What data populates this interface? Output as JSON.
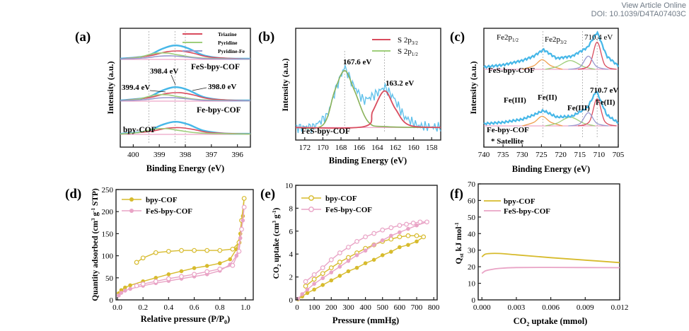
{
  "header": {
    "view_online": "View Article Online",
    "doi": "DOI: 10.1039/D4TA07403C"
  },
  "colors": {
    "blue": "#46b7e8",
    "red": "#d94c5e",
    "green": "#9fce7b",
    "olive": "#8ab25a",
    "pinkline": "#e98fb9",
    "orange": "#f0a050",
    "purple": "#9a9ad0",
    "yellow": "#d7bb2d",
    "pink": "#e9a4c6"
  },
  "chart_data": [
    {
      "id": "a",
      "type": "line",
      "panel_label": "(a)",
      "xlabel": "Binding Energy (eV)",
      "ylabel": "Intensity (a.u.)",
      "xlim": [
        400.5,
        395.5
      ],
      "x_reversed": true,
      "xticks": [
        400,
        399,
        398,
        397,
        396
      ],
      "legend": [
        "Triazine",
        "Pyridine",
        "Pyridine-Fe"
      ],
      "sample_labels": [
        "FeS-bpy-COF",
        "Fe-bpy-COF",
        "bpy-COF"
      ],
      "annotations": [
        "399.4 eV",
        "398.4 eV",
        "398.0 eV"
      ],
      "dashed_x": [
        399.4,
        398.4,
        398.0
      ],
      "series": [
        {
          "values": [
            [
              400.5,
              0.02
            ],
            [
              399.5,
              0.1
            ],
            [
              398.9,
              0.3
            ],
            [
              398.4,
              0.4
            ],
            [
              397.9,
              0.32
            ],
            [
              397.3,
              0.12
            ],
            [
              396.5,
              0.03
            ],
            [
              395.5,
              0.02
            ]
          ]
        },
        {
          "values": [
            [
              400.5,
              0.01
            ],
            [
              399.4,
              0.1
            ],
            [
              398.7,
              0.22
            ],
            [
              398.2,
              0.24
            ],
            [
              397.7,
              0.18
            ],
            [
              397.0,
              0.06
            ],
            [
              395.5,
              0.01
            ]
          ]
        },
        {
          "values": [
            [
              400.5,
              0.01
            ],
            [
              399.8,
              0.06
            ],
            [
              399.2,
              0.17
            ],
            [
              398.7,
              0.18
            ],
            [
              398.2,
              0.12
            ],
            [
              397.4,
              0.04
            ],
            [
              395.5,
              0.01
            ]
          ]
        },
        {
          "values": [
            [
              400.5,
              0.01
            ],
            [
              399.6,
              0.04
            ],
            [
              399.0,
              0.09
            ],
            [
              398.5,
              0.1
            ],
            [
              398.0,
              0.07
            ],
            [
              397.2,
              0.02
            ],
            [
              395.5,
              0.01
            ]
          ]
        }
      ]
    },
    {
      "id": "b",
      "type": "line",
      "panel_label": "(b)",
      "xlabel": "Binding Energy (eV)",
      "ylabel": "Intensity (a.u.)",
      "xlim": [
        173,
        157
      ],
      "x_reversed": true,
      "xticks": [
        172,
        170,
        168,
        166,
        164,
        162,
        160,
        158
      ],
      "legend": [
        "S 2p3/2",
        "S 2p1/2"
      ],
      "sample_labels": [
        "FeS-bpy-COF"
      ],
      "annotations": [
        "167.6 eV",
        "163.2 eV"
      ],
      "dashed_x": [
        167.6,
        163.2
      ],
      "series": [
        {
          "values": [
            [
              173,
              0.05
            ],
            [
              171,
              0.06
            ],
            [
              169.5,
              0.2
            ],
            [
              168.5,
              0.55
            ],
            [
              167.6,
              0.8
            ],
            [
              166.8,
              0.6
            ],
            [
              165.5,
              0.38
            ],
            [
              164.3,
              0.45
            ],
            [
              163.2,
              0.55
            ],
            [
              162.2,
              0.42
            ],
            [
              161,
              0.18
            ],
            [
              159.5,
              0.07
            ],
            [
              157,
              0.05
            ]
          ]
        },
        {
          "values": [
            [
              173,
              0.05
            ],
            [
              165.5,
              0.06
            ],
            [
              164.5,
              0.25
            ],
            [
              163.2,
              0.5
            ],
            [
              162,
              0.28
            ],
            [
              160.5,
              0.08
            ],
            [
              157,
              0.05
            ]
          ]
        },
        {
          "values": [
            [
              173,
              0.05
            ],
            [
              170,
              0.08
            ],
            [
              168.7,
              0.5
            ],
            [
              167.6,
              0.75
            ],
            [
              166.5,
              0.5
            ],
            [
              165,
              0.12
            ],
            [
              163,
              0.06
            ],
            [
              157,
              0.05
            ]
          ]
        }
      ]
    },
    {
      "id": "c",
      "type": "line",
      "panel_label": "(c)",
      "xlabel": "Binding Energy (eV)",
      "ylabel": "Intensity (a.u.)",
      "xlim": [
        740,
        705
      ],
      "x_reversed": true,
      "xticks": [
        740,
        735,
        730,
        725,
        720,
        715,
        710,
        705
      ],
      "sample_labels": [
        "FeS-bpy-COF",
        "Fe-bpy-COF",
        "* Satellite"
      ],
      "annotations": [
        "Fe2p1/2",
        "Fe2p3/2",
        "710.4 eV",
        "710.7 eV",
        "Fe(III)",
        "Fe(II)",
        "Fe(III)",
        "Fe(II)"
      ],
      "dashed_x": [
        724.6,
        714.3,
        710.5
      ],
      "series": [
        {
          "values": [
            [
              740,
              0.05
            ],
            [
              735,
              0.1
            ],
            [
              730,
              0.2
            ],
            [
              727,
              0.3
            ],
            [
              724.5,
              0.45
            ],
            [
              721,
              0.25
            ],
            [
              717,
              0.3
            ],
            [
              713,
              0.5
            ],
            [
              710.5,
              0.85
            ],
            [
              708,
              0.3
            ],
            [
              705,
              0.08
            ]
          ]
        },
        {
          "values": [
            [
              740,
              0.05
            ],
            [
              735,
              0.08
            ],
            [
              730,
              0.15
            ],
            [
              727,
              0.25
            ],
            [
              724.5,
              0.35
            ],
            [
              721,
              0.2
            ],
            [
              717,
              0.22
            ],
            [
              713,
              0.42
            ],
            [
              710.7,
              0.8
            ],
            [
              708,
              0.25
            ],
            [
              705,
              0.07
            ]
          ]
        }
      ]
    },
    {
      "id": "d",
      "type": "line",
      "panel_label": "(d)",
      "xlabel": "Relative pressure (P/P0)",
      "ylabel": "Quantity adsorbed (cm3 g-1 STP)",
      "xlim": [
        0,
        1.05
      ],
      "ylim": [
        0,
        250
      ],
      "xticks": [
        0.0,
        0.2,
        0.4,
        0.6,
        0.8,
        1.0
      ],
      "yticks": [
        0,
        50,
        100,
        150,
        200,
        250
      ],
      "legend_position": "top-left",
      "series": [
        {
          "name": "bpy-COF",
          "color_key": "yellow",
          "adsorption": [
            [
              0.01,
              15
            ],
            [
              0.03,
              22
            ],
            [
              0.06,
              28
            ],
            [
              0.1,
              33
            ],
            [
              0.2,
              42
            ],
            [
              0.3,
              50
            ],
            [
              0.4,
              58
            ],
            [
              0.5,
              65
            ],
            [
              0.6,
              72
            ],
            [
              0.7,
              77
            ],
            [
              0.8,
              83
            ],
            [
              0.88,
              92
            ],
            [
              0.93,
              115
            ],
            [
              0.96,
              150
            ],
            [
              0.98,
              190
            ],
            [
              0.99,
              230
            ]
          ],
          "desorption": [
            [
              0.99,
              230
            ],
            [
              0.97,
              180
            ],
            [
              0.95,
              130
            ],
            [
              0.9,
              115
            ],
            [
              0.8,
              112
            ],
            [
              0.7,
              112
            ],
            [
              0.6,
              112
            ],
            [
              0.5,
              112
            ],
            [
              0.4,
              110
            ],
            [
              0.3,
              107
            ],
            [
              0.2,
              95
            ],
            [
              0.15,
              85
            ]
          ]
        },
        {
          "name": "FeS-bpy-COF",
          "color_key": "pink",
          "adsorption": [
            [
              0.01,
              10
            ],
            [
              0.03,
              16
            ],
            [
              0.06,
              21
            ],
            [
              0.1,
              25
            ],
            [
              0.2,
              32
            ],
            [
              0.3,
              38
            ],
            [
              0.4,
              43
            ],
            [
              0.5,
              48
            ],
            [
              0.6,
              53
            ],
            [
              0.7,
              58
            ],
            [
              0.8,
              66
            ],
            [
              0.88,
              80
            ],
            [
              0.93,
              100
            ],
            [
              0.96,
              140
            ],
            [
              0.98,
              180
            ],
            [
              0.99,
              210
            ]
          ],
          "desorption": [
            [
              0.99,
              210
            ],
            [
              0.97,
              160
            ],
            [
              0.95,
              110
            ],
            [
              0.9,
              78
            ],
            [
              0.8,
              70
            ],
            [
              0.7,
              64
            ],
            [
              0.6,
              58
            ],
            [
              0.5,
              53
            ],
            [
              0.4,
              48
            ],
            [
              0.3,
              42
            ],
            [
              0.2,
              36
            ],
            [
              0.15,
              32
            ]
          ]
        }
      ]
    },
    {
      "id": "e",
      "type": "line",
      "panel_label": "(e)",
      "xlabel": "Pressure (mmHg)",
      "ylabel": "CO2 uptake (cm3 g-1)",
      "xlim": [
        0,
        820
      ],
      "ylim": [
        0,
        10
      ],
      "xticks": [
        0,
        100,
        200,
        300,
        400,
        500,
        600,
        700,
        800
      ],
      "yticks": [
        0,
        2,
        4,
        6,
        8,
        10
      ],
      "legend_position": "top-left",
      "series": [
        {
          "name": "bpy-COF",
          "color_key": "yellow",
          "adsorption": [
            [
              5,
              0.05
            ],
            [
              30,
              0.3
            ],
            [
              60,
              0.6
            ],
            [
              100,
              0.9
            ],
            [
              150,
              1.3
            ],
            [
              200,
              1.7
            ],
            [
              250,
              2.1
            ],
            [
              300,
              2.5
            ],
            [
              350,
              2.8
            ],
            [
              400,
              3.2
            ],
            [
              450,
              3.5
            ],
            [
              500,
              3.9
            ],
            [
              550,
              4.2
            ],
            [
              600,
              4.6
            ],
            [
              650,
              4.8
            ],
            [
              700,
              5.1
            ],
            [
              740,
              5.5
            ]
          ],
          "desorption": [
            [
              740,
              5.5
            ],
            [
              700,
              5.6
            ],
            [
              650,
              5.6
            ],
            [
              600,
              5.5
            ],
            [
              550,
              5.3
            ],
            [
              500,
              5.1
            ],
            [
              450,
              4.8
            ],
            [
              400,
              4.5
            ],
            [
              350,
              4.1
            ],
            [
              300,
              3.7
            ],
            [
              250,
              3.3
            ],
            [
              200,
              2.8
            ],
            [
              150,
              2.3
            ],
            [
              100,
              1.8
            ],
            [
              50,
              1.2
            ]
          ]
        },
        {
          "name": "FeS-bpy-COF",
          "color_key": "pink",
          "adsorption": [
            [
              5,
              0.1
            ],
            [
              30,
              0.5
            ],
            [
              60,
              0.9
            ],
            [
              100,
              1.4
            ],
            [
              150,
              1.9
            ],
            [
              200,
              2.4
            ],
            [
              250,
              2.9
            ],
            [
              300,
              3.4
            ],
            [
              350,
              3.9
            ],
            [
              400,
              4.3
            ],
            [
              450,
              4.8
            ],
            [
              500,
              5.2
            ],
            [
              550,
              5.6
            ],
            [
              600,
              5.9
            ],
            [
              650,
              6.2
            ],
            [
              700,
              6.5
            ],
            [
              760,
              6.8
            ]
          ],
          "desorption": [
            [
              760,
              6.8
            ],
            [
              720,
              6.8
            ],
            [
              680,
              6.7
            ],
            [
              640,
              6.6
            ],
            [
              600,
              6.5
            ],
            [
              550,
              6.3
            ],
            [
              500,
              6.1
            ],
            [
              450,
              5.8
            ],
            [
              400,
              5.5
            ],
            [
              350,
              5.1
            ],
            [
              300,
              4.6
            ],
            [
              250,
              4.1
            ],
            [
              200,
              3.5
            ],
            [
              150,
              2.8
            ],
            [
              100,
              2.2
            ],
            [
              50,
              1.6
            ]
          ]
        }
      ]
    },
    {
      "id": "f",
      "type": "line",
      "panel_label": "(f)",
      "xlabel": "CO2 uptake (mmol)",
      "ylabel": "Qst kJ mol-1",
      "xlim": [
        -0.0002,
        0.012
      ],
      "ylim": [
        0,
        70
      ],
      "xticks": [
        "0.000",
        "0.003",
        "0.006",
        "0.009",
        "0.012"
      ],
      "yticks": [
        0,
        10,
        20,
        30,
        40,
        50,
        60,
        70
      ],
      "legend_position": "top-left",
      "series": [
        {
          "name": "bpy-COF",
          "color_key": "yellow",
          "values": [
            [
              0.0,
              26.0
            ],
            [
              0.0003,
              27.6
            ],
            [
              0.0008,
              28.0
            ],
            [
              0.0015,
              28.0
            ],
            [
              0.003,
              27.2
            ],
            [
              0.006,
              25.5
            ],
            [
              0.009,
              24.0
            ],
            [
              0.012,
              22.5
            ]
          ]
        },
        {
          "name": "FeS-bpy-COF",
          "color_key": "pink",
          "values": [
            [
              0.0,
              16.0
            ],
            [
              0.0003,
              17.5
            ],
            [
              0.0008,
              18.3
            ],
            [
              0.0015,
              19.0
            ],
            [
              0.003,
              19.5
            ],
            [
              0.006,
              19.6
            ],
            [
              0.009,
              19.5
            ],
            [
              0.012,
              19.4
            ]
          ]
        }
      ]
    }
  ]
}
